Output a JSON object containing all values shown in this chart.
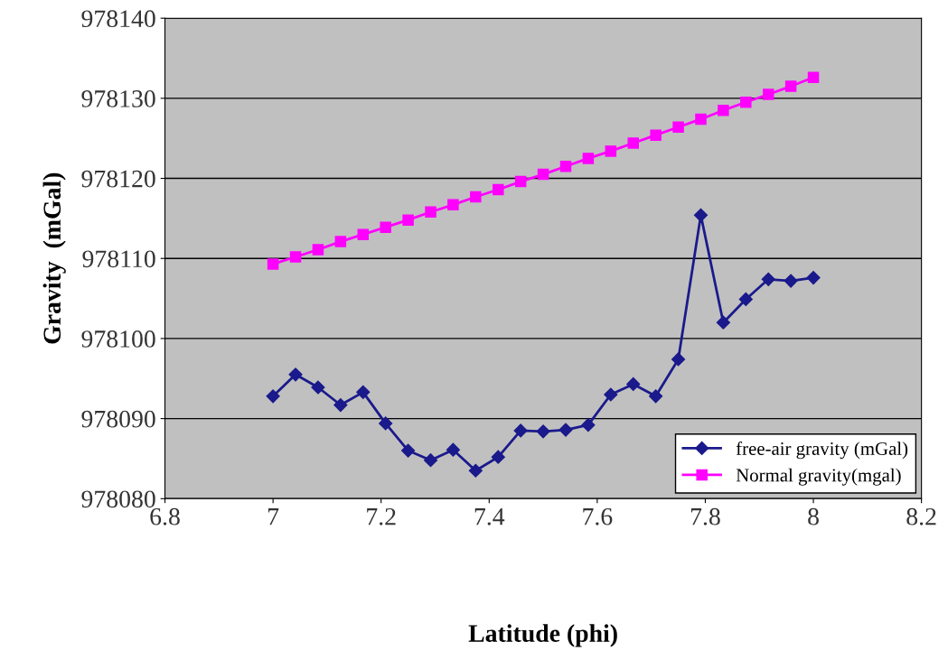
{
  "chart_data": {
    "type": "line",
    "xlabel": "Latitude (phi)",
    "ylabel": "Gravity  (mGal)",
    "x": [
      7,
      7.0417,
      7.0833,
      7.125,
      7.1667,
      7.2083,
      7.25,
      7.2917,
      7.3333,
      7.375,
      7.4167,
      7.4583,
      7.5,
      7.5417,
      7.5833,
      7.625,
      7.6667,
      7.7083,
      7.75,
      7.7917,
      7.8333,
      7.875,
      7.9167,
      7.9583,
      8
    ],
    "series": [
      {
        "name": "free-air gravity (mGal)",
        "color": "#1a1a8c",
        "marker": "diamond",
        "values": [
          978092.8,
          978095.5,
          978093.9,
          978091.7,
          978093.3,
          978089.4,
          978086.0,
          978084.8,
          978086.1,
          978083.5,
          978085.2,
          978088.5,
          978088.4,
          978088.6,
          978089.2,
          978093.0,
          978094.3,
          978092.8,
          978097.4,
          978115.4,
          978102.0,
          978104.9,
          978107.4,
          978107.2,
          978107.6
        ]
      },
      {
        "name": "Normal gravity(mgal)",
        "color": "#ff00ff",
        "marker": "square",
        "values": [
          978109.3,
          978110.2,
          978111.1,
          978112.1,
          978113.0,
          978113.9,
          978114.8,
          978115.8,
          978116.7,
          978117.7,
          978118.6,
          978119.6,
          978120.5,
          978121.5,
          978122.5,
          978123.4,
          978124.4,
          978125.4,
          978126.4,
          978127.4,
          978128.5,
          978129.5,
          978130.5,
          978131.5,
          978132.6
        ]
      }
    ],
    "xlim": [
      6.8,
      8.2
    ],
    "xticks": [
      6.8,
      7,
      7.2,
      7.4,
      7.6,
      7.8,
      8,
      8.2
    ],
    "ylim": [
      978080,
      978140
    ],
    "yticks": [
      978080,
      978090,
      978100,
      978110,
      978120,
      978130,
      978140
    ],
    "grid": "y",
    "legend": "bottom right",
    "line_style": "solid"
  }
}
